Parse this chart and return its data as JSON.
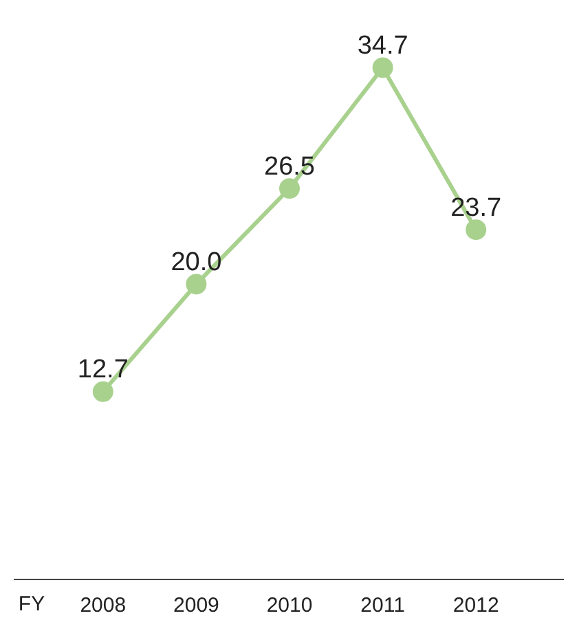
{
  "chart_data": {
    "type": "line",
    "xlabel": "FY",
    "categories": [
      "2008",
      "2009",
      "2010",
      "2011",
      "2012"
    ],
    "series": [
      {
        "color": "#a9d18e",
        "values": [
          12.7,
          20.0,
          26.5,
          34.7,
          23.7
        ],
        "value_labels": [
          "12.7",
          "20.0",
          "26.5",
          "34.7",
          "23.7"
        ]
      }
    ],
    "marker": "circle",
    "line_style": "solid",
    "grid": false,
    "legend": false
  }
}
